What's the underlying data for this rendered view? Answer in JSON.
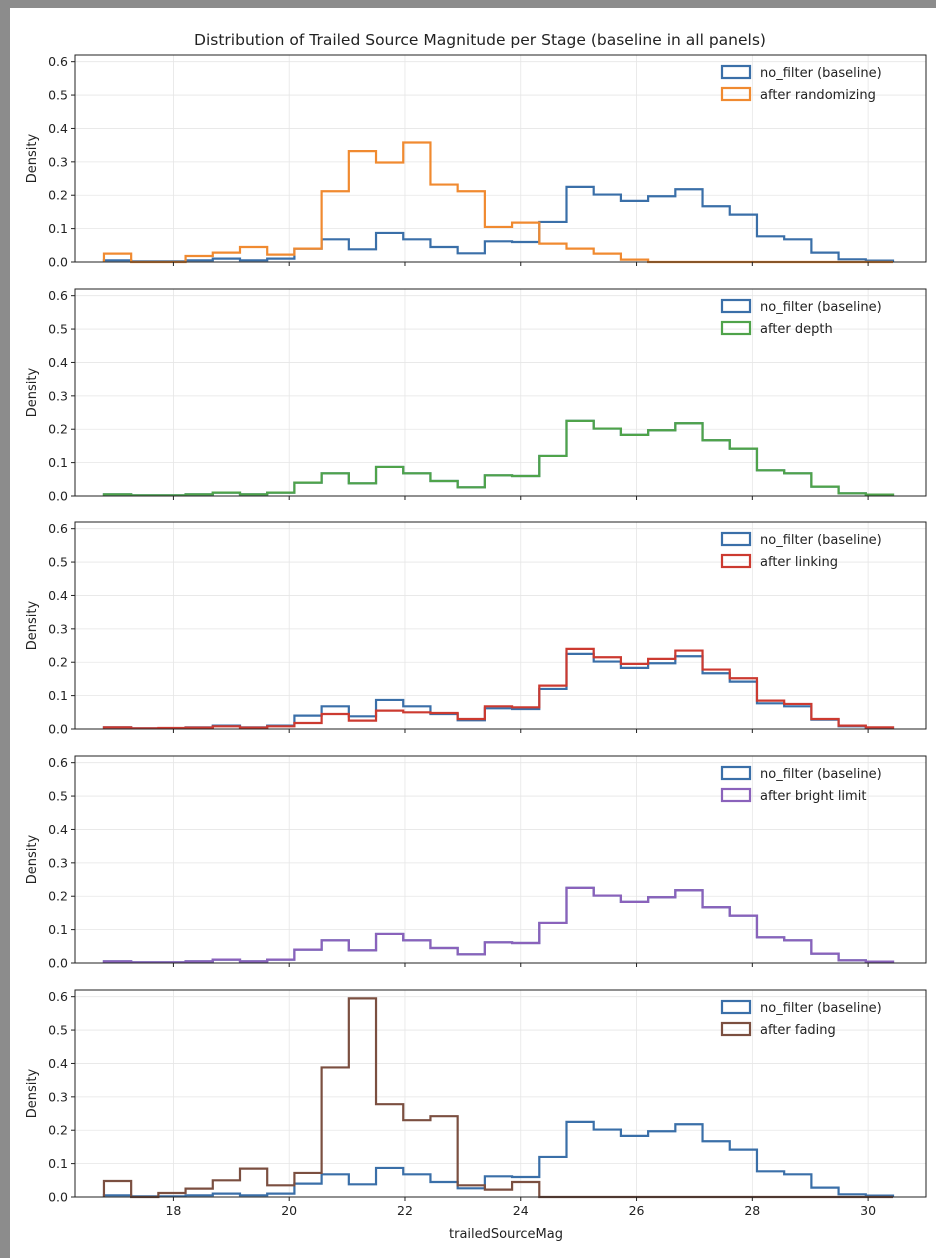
{
  "chart_data": {
    "type": "step-histogram",
    "title": "Distribution of Trailed Source Magnitude per Stage (baseline in all panels)",
    "xlabel": "trailedSourceMag",
    "ylabel": "Density",
    "xlim": [
      16.3,
      31.0
    ],
    "ylim": [
      0,
      0.62
    ],
    "xticks": [
      18,
      20,
      22,
      24,
      26,
      28,
      30
    ],
    "yticks": [
      0.0,
      0.1,
      0.2,
      0.3,
      0.4,
      0.5,
      0.6
    ],
    "grid": true,
    "legend_position": "upper right",
    "bin_edges": [
      16.8,
      17.27,
      17.74,
      18.21,
      18.68,
      19.15,
      19.62,
      20.09,
      20.56,
      21.03,
      21.5,
      21.97,
      22.44,
      22.91,
      23.38,
      23.85,
      24.32,
      24.79,
      25.26,
      25.73,
      26.2,
      26.67,
      27.14,
      27.61,
      28.08,
      28.55,
      29.02,
      29.49,
      29.96,
      30.43
    ],
    "baseline": {
      "name": "no_filter (baseline)",
      "color": "#3a6fa8",
      "values": [
        0.005,
        0.002,
        0.002,
        0.005,
        0.01,
        0.005,
        0.01,
        0.04,
        0.068,
        0.038,
        0.087,
        0.068,
        0.045,
        0.026,
        0.062,
        0.06,
        0.12,
        0.225,
        0.202,
        0.183,
        0.197,
        0.218,
        0.167,
        0.142,
        0.077,
        0.068,
        0.028,
        0.008,
        0.004
      ]
    },
    "panels": [
      {
        "name": "after randomizing",
        "color": "#f08a30",
        "values": [
          0.025,
          0.0,
          0.0,
          0.018,
          0.028,
          0.045,
          0.022,
          0.04,
          0.212,
          0.332,
          0.298,
          0.358,
          0.232,
          0.212,
          0.105,
          0.118,
          0.055,
          0.04,
          0.025,
          0.007,
          0.0,
          0.0,
          0.0,
          0.0,
          0.0,
          0.0,
          0.0,
          0.0,
          0.0
        ]
      },
      {
        "name": "after depth",
        "color": "#4fa34a",
        "values": [
          0.005,
          0.002,
          0.002,
          0.005,
          0.01,
          0.005,
          0.01,
          0.04,
          0.068,
          0.038,
          0.087,
          0.068,
          0.045,
          0.026,
          0.062,
          0.06,
          0.12,
          0.225,
          0.202,
          0.183,
          0.197,
          0.218,
          0.167,
          0.142,
          0.077,
          0.068,
          0.028,
          0.008,
          0.004
        ]
      },
      {
        "name": "after linking",
        "color": "#cc3a30",
        "values": [
          0.005,
          0.002,
          0.003,
          0.004,
          0.008,
          0.004,
          0.008,
          0.018,
          0.045,
          0.025,
          0.055,
          0.05,
          0.048,
          0.03,
          0.068,
          0.065,
          0.13,
          0.24,
          0.215,
          0.195,
          0.21,
          0.235,
          0.178,
          0.152,
          0.085,
          0.075,
          0.03,
          0.01,
          0.005
        ]
      },
      {
        "name": "after bright limit",
        "color": "#8a62bb",
        "values": [
          0.005,
          0.002,
          0.002,
          0.005,
          0.01,
          0.005,
          0.01,
          0.04,
          0.068,
          0.038,
          0.087,
          0.068,
          0.045,
          0.026,
          0.062,
          0.06,
          0.12,
          0.225,
          0.202,
          0.183,
          0.197,
          0.218,
          0.167,
          0.142,
          0.077,
          0.068,
          0.028,
          0.008,
          0.004
        ]
      },
      {
        "name": "after fading",
        "color": "#7b4f40",
        "values": [
          0.048,
          0.0,
          0.012,
          0.025,
          0.05,
          0.085,
          0.035,
          0.072,
          0.388,
          0.595,
          0.278,
          0.23,
          0.242,
          0.035,
          0.022,
          0.045,
          0.0,
          0.0,
          0.0,
          0.0,
          0.0,
          0.0,
          0.0,
          0.0,
          0.0,
          0.0,
          0.0,
          0.0,
          0.0
        ]
      }
    ]
  }
}
